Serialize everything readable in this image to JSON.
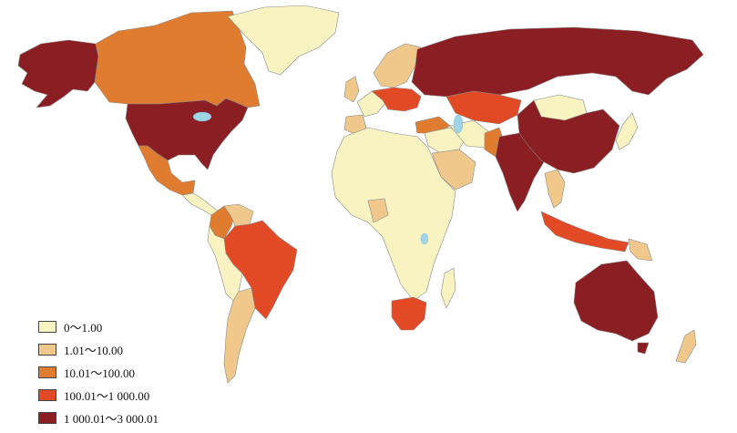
{
  "map": {
    "colors": {
      "c1": "#f8f3c1",
      "c2": "#f1c88c",
      "c3": "#e07c2f",
      "c4": "#e24a25",
      "c5": "#8b1e22",
      "water": "#9fd3e6"
    },
    "legend": [
      {
        "label": "0～1.00",
        "color": "#f8f3c1"
      },
      {
        "label": "1.01～10.00",
        "color": "#f1c88c"
      },
      {
        "label": "10.01～100.00",
        "color": "#e07c2f"
      },
      {
        "label": "100.01～1 000.00",
        "color": "#e24a25"
      },
      {
        "label": "1 000.01～3 000.01",
        "color": "#8b1e22"
      }
    ],
    "regions": [
      {
        "name": "alaska",
        "cls": 5
      },
      {
        "name": "canada",
        "cls": 3
      },
      {
        "name": "greenland",
        "cls": 1
      },
      {
        "name": "usa",
        "cls": 5
      },
      {
        "name": "mexico",
        "cls": 3
      },
      {
        "name": "central-america",
        "cls": 1
      },
      {
        "name": "colombia",
        "cls": 3
      },
      {
        "name": "venezuela",
        "cls": 2
      },
      {
        "name": "brazil",
        "cls": 4
      },
      {
        "name": "south-america-west",
        "cls": 1
      },
      {
        "name": "argentina",
        "cls": 2
      },
      {
        "name": "uk",
        "cls": 2
      },
      {
        "name": "scandinavia",
        "cls": 2
      },
      {
        "name": "western-europe",
        "cls": 1
      },
      {
        "name": "central-europe",
        "cls": 4
      },
      {
        "name": "iberia",
        "cls": 2
      },
      {
        "name": "russia",
        "cls": 5
      },
      {
        "name": "kazakhstan",
        "cls": 4
      },
      {
        "name": "turkey",
        "cls": 3
      },
      {
        "name": "middle-east",
        "cls": 1
      },
      {
        "name": "saudi-arabia",
        "cls": 2
      },
      {
        "name": "iran",
        "cls": 1
      },
      {
        "name": "pakistan",
        "cls": 3
      },
      {
        "name": "india",
        "cls": 5
      },
      {
        "name": "mongolia",
        "cls": 1
      },
      {
        "name": "china",
        "cls": 5
      },
      {
        "name": "japan",
        "cls": 1
      },
      {
        "name": "southeast-asia",
        "cls": 2
      },
      {
        "name": "indonesia",
        "cls": 4
      },
      {
        "name": "papua",
        "cls": 2
      },
      {
        "name": "africa",
        "cls": 1
      },
      {
        "name": "central-africa",
        "cls": 2
      },
      {
        "name": "south-africa",
        "cls": 4
      },
      {
        "name": "madagascar",
        "cls": 1
      },
      {
        "name": "australia",
        "cls": 5
      },
      {
        "name": "tasmania",
        "cls": 5
      },
      {
        "name": "new-zealand",
        "cls": 2
      }
    ]
  }
}
